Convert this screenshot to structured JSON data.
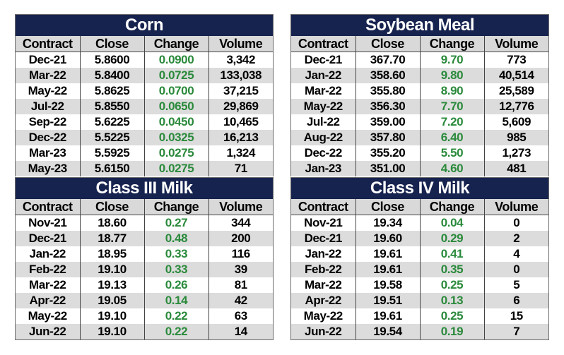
{
  "columns": [
    "Contract",
    "Close",
    "Change",
    "Volume"
  ],
  "panels": [
    {
      "title": "Corn",
      "rows": [
        [
          "Dec-21",
          "5.8600",
          "0.0900",
          "3,342"
        ],
        [
          "Mar-22",
          "5.8400",
          "0.0725",
          "133,038"
        ],
        [
          "May-22",
          "5.8625",
          "0.0700",
          "37,215"
        ],
        [
          "Jul-22",
          "5.8550",
          "0.0650",
          "29,869"
        ],
        [
          "Sep-22",
          "5.6225",
          "0.0450",
          "10,465"
        ],
        [
          "Dec-22",
          "5.5225",
          "0.0325",
          "16,213"
        ],
        [
          "Mar-23",
          "5.5925",
          "0.0275",
          "1,324"
        ],
        [
          "May-23",
          "5.6150",
          "0.0275",
          "71"
        ]
      ]
    },
    {
      "title": "Soybean Meal",
      "rows": [
        [
          "Dec-21",
          "367.70",
          "9.70",
          "773"
        ],
        [
          "Jan-22",
          "358.60",
          "9.80",
          "40,514"
        ],
        [
          "Mar-22",
          "355.80",
          "8.90",
          "25,589"
        ],
        [
          "May-22",
          "356.30",
          "7.70",
          "12,776"
        ],
        [
          "Jul-22",
          "359.00",
          "7.20",
          "5,609"
        ],
        [
          "Aug-22",
          "357.80",
          "6.40",
          "985"
        ],
        [
          "Dec-22",
          "355.20",
          "5.50",
          "1,273"
        ],
        [
          "Jan-23",
          "351.00",
          "4.60",
          "481"
        ]
      ]
    },
    {
      "title": "Class III Milk",
      "rows": [
        [
          "Nov-21",
          "18.60",
          "0.27",
          "344"
        ],
        [
          "Dec-21",
          "18.77",
          "0.48",
          "200"
        ],
        [
          "Jan-22",
          "18.95",
          "0.33",
          "116"
        ],
        [
          "Feb-22",
          "19.10",
          "0.33",
          "39"
        ],
        [
          "Mar-22",
          "19.13",
          "0.26",
          "81"
        ],
        [
          "Apr-22",
          "19.05",
          "0.14",
          "42"
        ],
        [
          "May-22",
          "19.10",
          "0.22",
          "63"
        ],
        [
          "Jun-22",
          "19.10",
          "0.22",
          "14"
        ]
      ]
    },
    {
      "title": "Class IV Milk",
      "rows": [
        [
          "Nov-21",
          "19.34",
          "0.04",
          "0"
        ],
        [
          "Dec-21",
          "19.60",
          "0.29",
          "2"
        ],
        [
          "Jan-22",
          "19.61",
          "0.41",
          "4"
        ],
        [
          "Feb-22",
          "19.61",
          "0.35",
          "0"
        ],
        [
          "Mar-22",
          "19.58",
          "0.25",
          "5"
        ],
        [
          "Apr-22",
          "19.51",
          "0.13",
          "6"
        ],
        [
          "May-22",
          "19.61",
          "0.25",
          "15"
        ],
        [
          "Jun-22",
          "19.54",
          "0.19",
          "7"
        ]
      ]
    }
  ]
}
